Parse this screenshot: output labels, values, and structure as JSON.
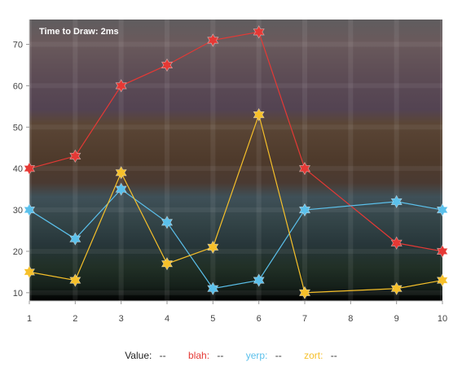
{
  "timing_label": "Time to Draw: 2ms",
  "legend": {
    "value": {
      "name": "Value:",
      "value": "--"
    },
    "blah": {
      "name": "blah:",
      "value": "--"
    },
    "yerp": {
      "name": "yerp:",
      "value": "--"
    },
    "zort": {
      "name": "zort:",
      "value": "--"
    }
  },
  "colors": {
    "blah": "#e53935",
    "yerp": "#5bc0eb",
    "zort": "#f6c02a",
    "value_label": "#222222"
  },
  "chart_data": {
    "type": "line",
    "x": [
      1,
      2,
      3,
      4,
      5,
      6,
      7,
      8,
      9,
      10
    ],
    "xlim": [
      1,
      10
    ],
    "ylim": [
      8,
      76
    ],
    "x_ticks": [
      1,
      2,
      3,
      4,
      5,
      6,
      7,
      8,
      9,
      10
    ],
    "y_ticks": [
      10,
      20,
      30,
      40,
      50,
      60,
      70
    ],
    "marker": "star",
    "series": [
      {
        "name": "blah",
        "color": "#e53935",
        "points": [
          [
            1,
            40
          ],
          [
            2,
            43
          ],
          [
            3,
            60
          ],
          [
            4,
            65
          ],
          [
            5,
            71
          ],
          [
            6,
            73
          ],
          [
            7,
            40
          ],
          [
            9,
            22
          ],
          [
            10,
            20
          ]
        ]
      },
      {
        "name": "yerp",
        "color": "#5bc0eb",
        "points": [
          [
            1,
            30
          ],
          [
            2,
            23
          ],
          [
            3,
            35
          ],
          [
            4,
            27
          ],
          [
            5,
            11
          ],
          [
            6,
            13
          ],
          [
            7,
            30
          ],
          [
            9,
            32
          ],
          [
            10,
            30
          ]
        ]
      },
      {
        "name": "zort",
        "color": "#f6c02a",
        "points": [
          [
            1,
            15
          ],
          [
            2,
            13
          ],
          [
            3,
            39
          ],
          [
            4,
            17
          ],
          [
            5,
            21
          ],
          [
            6,
            53
          ],
          [
            7,
            10
          ],
          [
            9,
            11
          ],
          [
            10,
            13
          ]
        ]
      }
    ]
  }
}
